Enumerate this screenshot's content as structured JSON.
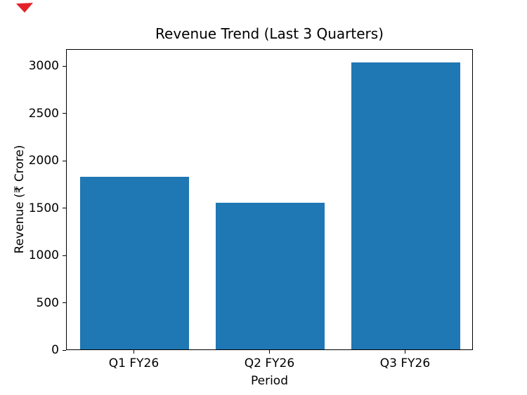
{
  "chart_data": {
    "type": "bar",
    "title": "Revenue Trend (Last 3 Quarters)",
    "xlabel": "Period",
    "ylabel": "Revenue (₹ Crore)",
    "categories": [
      "Q1 FY26",
      "Q2 FY26",
      "Q3 FY26"
    ],
    "values": [
      1825,
      1550,
      3035
    ],
    "yticks": [
      0,
      500,
      1000,
      1500,
      2000,
      2500,
      3000
    ],
    "ylim": [
      0,
      3180
    ],
    "bar_color": "#1f77b4",
    "grid": false,
    "legend": "none"
  },
  "decorations": {
    "corner_marker_color": "#e32228"
  }
}
